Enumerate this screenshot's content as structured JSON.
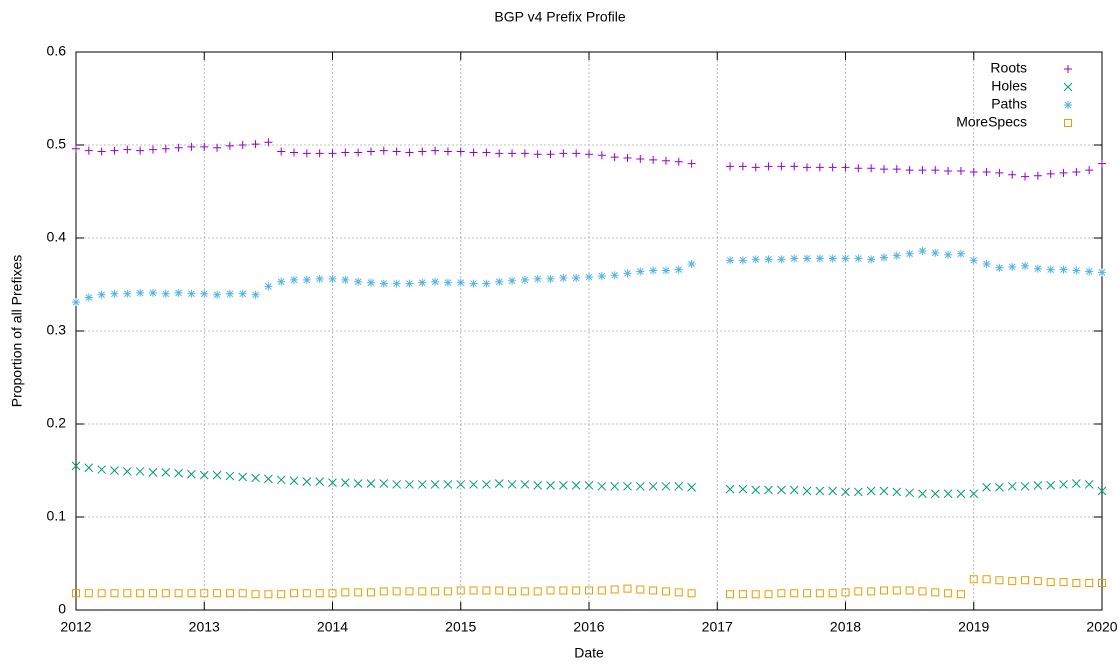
{
  "chart_data": {
    "type": "scatter",
    "title": "BGP v4 Prefix Profile",
    "x_label": "Date",
    "y_label": "Proportion of all Prefixes",
    "xlim": [
      2012,
      2020
    ],
    "xticks": [
      2012,
      2013,
      2014,
      2015,
      2016,
      2017,
      2018,
      2019,
      2020
    ],
    "ylim": [
      0,
      0.6
    ],
    "yticks": [
      0,
      0.1,
      0.2,
      0.3,
      0.4,
      0.5,
      0.6
    ],
    "grid": true,
    "legend": "top-right",
    "x": [
      2012.0,
      2012.1,
      2012.2,
      2012.3,
      2012.4,
      2012.5,
      2012.6,
      2012.7,
      2012.8,
      2012.9,
      2013.0,
      2013.1,
      2013.2,
      2013.3,
      2013.4,
      2013.5,
      2013.6,
      2013.7,
      2013.8,
      2013.9,
      2014.0,
      2014.1,
      2014.2,
      2014.3,
      2014.4,
      2014.5,
      2014.6,
      2014.7,
      2014.8,
      2014.9,
      2015.0,
      2015.1,
      2015.2,
      2015.3,
      2015.4,
      2015.5,
      2015.6,
      2015.7,
      2015.8,
      2015.9,
      2016.0,
      2016.1,
      2016.2,
      2016.3,
      2016.4,
      2016.5,
      2016.6,
      2016.7,
      2016.8,
      2017.1,
      2017.2,
      2017.3,
      2017.4,
      2017.5,
      2017.6,
      2017.7,
      2017.8,
      2017.9,
      2018.0,
      2018.1,
      2018.2,
      2018.3,
      2018.4,
      2018.5,
      2018.6,
      2018.7,
      2018.8,
      2018.9,
      2019.0,
      2019.1,
      2019.2,
      2019.3,
      2019.4,
      2019.5,
      2019.6,
      2019.7,
      2019.8,
      2019.9,
      2020.0
    ],
    "series": [
      {
        "name": "Roots",
        "color": "#9400d3",
        "marker": "plus",
        "values": [
          0.496,
          0.494,
          0.493,
          0.494,
          0.495,
          0.494,
          0.495,
          0.496,
          0.497,
          0.498,
          0.498,
          0.497,
          0.499,
          0.5,
          0.501,
          0.503,
          0.493,
          0.492,
          0.491,
          0.491,
          0.491,
          0.492,
          0.492,
          0.493,
          0.494,
          0.493,
          0.492,
          0.493,
          0.494,
          0.493,
          0.493,
          0.492,
          0.492,
          0.491,
          0.491,
          0.491,
          0.49,
          0.49,
          0.491,
          0.491,
          0.49,
          0.489,
          0.487,
          0.486,
          0.485,
          0.484,
          0.483,
          0.482,
          0.48,
          0.477,
          0.477,
          0.476,
          0.477,
          0.477,
          0.477,
          0.476,
          0.476,
          0.476,
          0.476,
          0.475,
          0.475,
          0.474,
          0.474,
          0.473,
          0.473,
          0.473,
          0.472,
          0.472,
          0.471,
          0.471,
          0.47,
          0.468,
          0.466,
          0.467,
          0.469,
          0.47,
          0.471,
          0.473,
          0.48
        ]
      },
      {
        "name": "Holes",
        "color": "#009e73",
        "marker": "cross",
        "values": [
          0.155,
          0.153,
          0.151,
          0.15,
          0.149,
          0.149,
          0.148,
          0.148,
          0.147,
          0.146,
          0.145,
          0.145,
          0.144,
          0.143,
          0.142,
          0.141,
          0.14,
          0.139,
          0.138,
          0.138,
          0.137,
          0.137,
          0.136,
          0.136,
          0.136,
          0.135,
          0.135,
          0.135,
          0.135,
          0.135,
          0.135,
          0.135,
          0.135,
          0.136,
          0.135,
          0.135,
          0.134,
          0.134,
          0.134,
          0.134,
          0.134,
          0.133,
          0.133,
          0.133,
          0.133,
          0.133,
          0.133,
          0.133,
          0.132,
          0.13,
          0.13,
          0.129,
          0.129,
          0.129,
          0.129,
          0.128,
          0.128,
          0.128,
          0.127,
          0.127,
          0.128,
          0.128,
          0.127,
          0.126,
          0.125,
          0.125,
          0.125,
          0.125,
          0.125,
          0.132,
          0.132,
          0.133,
          0.133,
          0.134,
          0.134,
          0.135,
          0.136,
          0.135,
          0.128
        ]
      },
      {
        "name": "Paths",
        "color": "#56b4e9",
        "marker": "star",
        "values": [
          0.331,
          0.336,
          0.339,
          0.34,
          0.34,
          0.341,
          0.341,
          0.34,
          0.341,
          0.34,
          0.34,
          0.339,
          0.34,
          0.34,
          0.339,
          0.348,
          0.353,
          0.355,
          0.355,
          0.356,
          0.356,
          0.355,
          0.353,
          0.352,
          0.351,
          0.351,
          0.351,
          0.352,
          0.353,
          0.352,
          0.352,
          0.351,
          0.351,
          0.353,
          0.354,
          0.355,
          0.356,
          0.356,
          0.357,
          0.357,
          0.358,
          0.359,
          0.36,
          0.362,
          0.364,
          0.365,
          0.365,
          0.366,
          0.372,
          0.376,
          0.376,
          0.377,
          0.377,
          0.377,
          0.378,
          0.378,
          0.378,
          0.378,
          0.378,
          0.378,
          0.377,
          0.379,
          0.381,
          0.383,
          0.386,
          0.384,
          0.382,
          0.383,
          0.376,
          0.372,
          0.368,
          0.369,
          0.37,
          0.367,
          0.366,
          0.366,
          0.365,
          0.364,
          0.363
        ]
      },
      {
        "name": "MoreSpecs",
        "color": "#e69f00",
        "marker": "square",
        "values": [
          0.018,
          0.018,
          0.018,
          0.018,
          0.018,
          0.018,
          0.018,
          0.018,
          0.018,
          0.018,
          0.018,
          0.018,
          0.018,
          0.018,
          0.017,
          0.017,
          0.017,
          0.018,
          0.018,
          0.018,
          0.018,
          0.019,
          0.019,
          0.019,
          0.02,
          0.02,
          0.02,
          0.02,
          0.02,
          0.02,
          0.021,
          0.021,
          0.021,
          0.021,
          0.02,
          0.02,
          0.02,
          0.021,
          0.021,
          0.021,
          0.021,
          0.021,
          0.022,
          0.023,
          0.022,
          0.021,
          0.02,
          0.019,
          0.018,
          0.017,
          0.017,
          0.017,
          0.017,
          0.018,
          0.018,
          0.018,
          0.018,
          0.018,
          0.019,
          0.02,
          0.02,
          0.021,
          0.021,
          0.021,
          0.02,
          0.019,
          0.018,
          0.017,
          0.033,
          0.033,
          0.032,
          0.031,
          0.032,
          0.031,
          0.03,
          0.03,
          0.029,
          0.029,
          0.029
        ]
      }
    ]
  }
}
